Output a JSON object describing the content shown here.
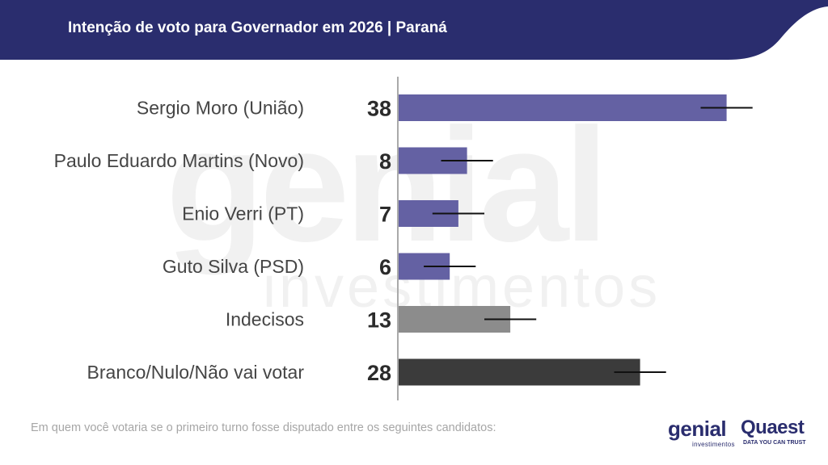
{
  "header": {
    "title": "Intenção de voto para Governador em 2026 | Paraná"
  },
  "footnote": "Em quem você votaria se o primeiro turno fosse disputado entre os seguintes candidatos:",
  "watermark": {
    "main": "genial",
    "sub": "investimentos"
  },
  "logos": {
    "genial": {
      "word": "genial",
      "sub": "investimentos"
    },
    "quaest": {
      "word": "Quaest",
      "sub": "DATA YOU CAN TRUST"
    }
  },
  "colors": {
    "header_bg": "#2a2d6e",
    "candidate_bar": "#6461a3",
    "undecided_bar": "#8c8c8c",
    "blank_bar": "#3b3b3b",
    "error_bar": "#111111",
    "axis": "#aaaaaa"
  },
  "chart_data": {
    "type": "bar",
    "orientation": "horizontal",
    "title": "Intenção de voto para Governador em 2026 | Paraná",
    "categories": [
      "Sergio Moro (União)",
      "Paulo Eduardo Martins (Novo)",
      "Enio Verri (PT)",
      "Guto Silva (PSD)",
      "Indecisos",
      "Branco/Nulo/Não vai votar"
    ],
    "values": [
      38,
      8,
      7,
      6,
      13,
      28
    ],
    "labels": [
      "38",
      "8",
      "7",
      "6",
      "13",
      "28"
    ],
    "error_margin": 3,
    "bar_colors": [
      "#6461a3",
      "#6461a3",
      "#6461a3",
      "#6461a3",
      "#8c8c8c",
      "#3b3b3b"
    ],
    "xlim": [
      0,
      44
    ],
    "grid": false,
    "legend": false
  }
}
